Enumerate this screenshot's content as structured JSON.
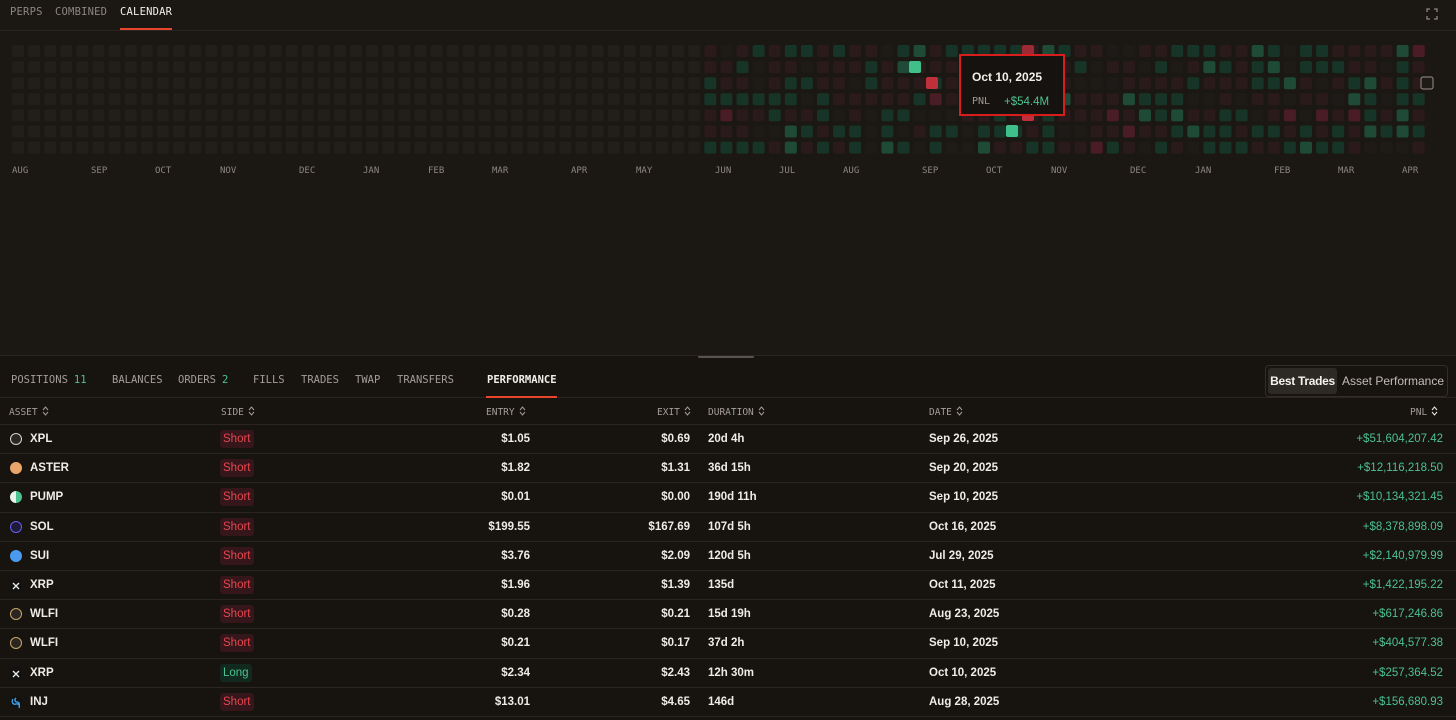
{
  "top_tabs": [
    "PERPS",
    "COMBINED",
    "CALENDAR"
  ],
  "active_top_tab": "CALENDAR",
  "calendar": {
    "months": [
      "AUG",
      "SEP",
      "OCT",
      "NOV",
      "DEC",
      "JAN",
      "FEB",
      "MAR",
      "APR",
      "MAY",
      "JUN",
      "JUL",
      "AUG",
      "SEP",
      "OCT",
      "NOV",
      "DEC",
      "JAN",
      "FEB",
      "MAR",
      "APR"
    ],
    "tooltip": {
      "date": "Oct 10, 2025",
      "label": "PNL",
      "value": "+$54.4M"
    }
  },
  "bottom_tabs": [
    {
      "label": "POSITIONS",
      "count": "11"
    },
    {
      "label": "BALANCES",
      "count": ""
    },
    {
      "label": "ORDERS",
      "count": "2"
    },
    {
      "label": "FILLS",
      "count": ""
    },
    {
      "label": "TRADES",
      "count": ""
    },
    {
      "label": "TWAP",
      "count": ""
    },
    {
      "label": "TRANSFERS",
      "count": ""
    },
    {
      "label": "PERFORMANCE",
      "count": ""
    }
  ],
  "segmented": {
    "selected": "Best Trades",
    "other": "Asset Performance"
  },
  "table": {
    "headers": {
      "asset": "ASSET",
      "side": "SIDE",
      "entry": "ENTRY",
      "exit": "EXIT",
      "duration": "DURATION",
      "date": "DATE",
      "pnl": "PNL"
    },
    "rows": [
      {
        "asset": "XPL",
        "icon": "xpl-icon",
        "side": "Short",
        "entry": "$1.05",
        "exit": "$0.69",
        "duration": "20d 4h",
        "date": "Sep 26, 2025",
        "pnl": "+$51,604,207.42"
      },
      {
        "asset": "ASTER",
        "icon": "aster-icon",
        "side": "Short",
        "entry": "$1.82",
        "exit": "$1.31",
        "duration": "36d 15h",
        "date": "Sep 20, 2025",
        "pnl": "+$12,116,218.50"
      },
      {
        "asset": "PUMP",
        "icon": "pump-icon",
        "side": "Short",
        "entry": "$0.01",
        "exit": "$0.00",
        "duration": "190d 11h",
        "date": "Sep 10, 2025",
        "pnl": "+$10,134,321.45"
      },
      {
        "asset": "SOL",
        "icon": "sol-icon",
        "side": "Short",
        "entry": "$199.55",
        "exit": "$167.69",
        "duration": "107d 5h",
        "date": "Oct 16, 2025",
        "pnl": "+$8,378,898.09"
      },
      {
        "asset": "SUI",
        "icon": "sui-icon",
        "side": "Short",
        "entry": "$3.76",
        "exit": "$2.09",
        "duration": "120d 5h",
        "date": "Jul 29, 2025",
        "pnl": "+$2,140,979.99"
      },
      {
        "asset": "XRP",
        "icon": "xrp-icon",
        "side": "Short",
        "entry": "$1.96",
        "exit": "$1.39",
        "duration": "135d",
        "date": "Oct 11, 2025",
        "pnl": "+$1,422,195.22"
      },
      {
        "asset": "WLFI",
        "icon": "wlfi-icon",
        "side": "Short",
        "entry": "$0.28",
        "exit": "$0.21",
        "duration": "15d 19h",
        "date": "Aug 23, 2025",
        "pnl": "+$617,246.86"
      },
      {
        "asset": "WLFI",
        "icon": "wlfi-icon",
        "side": "Short",
        "entry": "$0.21",
        "exit": "$0.17",
        "duration": "37d 2h",
        "date": "Sep 10, 2025",
        "pnl": "+$404,577.38"
      },
      {
        "asset": "XRP",
        "icon": "xrp-icon",
        "side": "Long",
        "entry": "$2.34",
        "exit": "$2.43",
        "duration": "12h 30m",
        "date": "Oct 10, 2025",
        "pnl": "+$257,364.52"
      },
      {
        "asset": "INJ",
        "icon": "inj-icon",
        "side": "Short",
        "entry": "$13.01",
        "exit": "$4.65",
        "duration": "146d",
        "date": "Aug 28, 2025",
        "pnl": "+$156,680.93"
      }
    ]
  },
  "colors": {
    "accent": "#e8462c",
    "positive": "#4cc28e",
    "negative": "#e8464e",
    "background": "#17130f"
  }
}
